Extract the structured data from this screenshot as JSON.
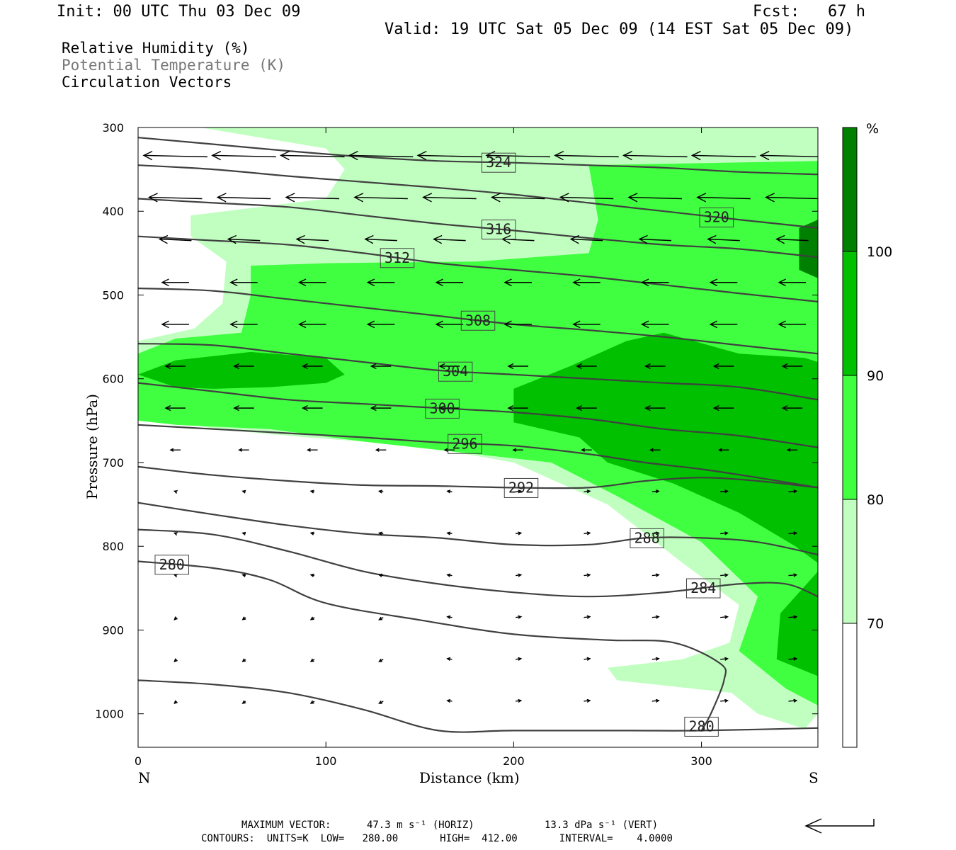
{
  "header": {
    "init": "Init: 00 UTC Thu 03 Dec 09",
    "fcst": "Fcst:   67 h",
    "valid": "Valid: 19 UTC Sat 05 Dec 09 (14 EST Sat 05 Dec 09)"
  },
  "legend": {
    "rh": "Relative Humidity (%)",
    "theta": "Potential Temperature (K)",
    "vectors": "Circulation Vectors"
  },
  "footer": {
    "max_vector_label": "MAXIMUM VECTOR:",
    "max_horiz": "47.3 m s⁻¹ (HORIZ)",
    "max_vert": "13.3 dPa s⁻¹ (VERT)",
    "contours": "CONTOURS:  UNITS=K  LOW=   280.00       HIGH=  412.00       INTERVAL=    4.0000"
  },
  "colors": {
    "band_70_80": "#c0ffc0",
    "band_80_90": "#40ff40",
    "band_90_100": "#00c000",
    "band_100": "#008000",
    "isentrope": "#404040",
    "vector": "#000000"
  },
  "chart_data": {
    "type": "heatmap",
    "title": "",
    "xlabel": "Distance (km)",
    "ylabel": "Pressure (hPa)",
    "xlim": [
      0,
      362
    ],
    "ylim": [
      1040,
      300
    ],
    "x_ticks": [
      "0",
      "100",
      "200",
      "300"
    ],
    "y_ticks": [
      "300",
      "400",
      "500",
      "600",
      "700",
      "800",
      "900",
      "1000"
    ],
    "x_end_labels": {
      "left": "N",
      "right": "S"
    },
    "colorbar": {
      "unit": "%",
      "levels": [
        "70",
        "80",
        "90",
        "100"
      ],
      "bands": [
        {
          "range": "<70",
          "color": "#ffffff"
        },
        {
          "range": "70-80",
          "color": "#c0ffc0"
        },
        {
          "range": "80-90",
          "color": "#40ff40"
        },
        {
          "range": "90-100",
          "color": "#00c000"
        },
        {
          "range": ">100",
          "color": "#008000"
        }
      ]
    },
    "rh_regions": [
      {
        "level": 70,
        "points": [
          [
            33,
            300
          ],
          [
            362,
            300
          ],
          [
            362,
            1000
          ],
          [
            355,
            1018
          ],
          [
            330,
            1000
          ],
          [
            316,
            975
          ],
          [
            255,
            960
          ],
          [
            250,
            945
          ],
          [
            290,
            935
          ],
          [
            315,
            915
          ],
          [
            320,
            870
          ],
          [
            290,
            820
          ],
          [
            250,
            750
          ],
          [
            200,
            700
          ],
          [
            150,
            680
          ],
          [
            90,
            670
          ],
          [
            40,
            660
          ],
          [
            0,
            640
          ],
          [
            0,
            555
          ],
          [
            30,
            540
          ],
          [
            45,
            510
          ],
          [
            47,
            460
          ],
          [
            28,
            430
          ],
          [
            28,
            405
          ],
          [
            100,
            385
          ],
          [
            110,
            350
          ],
          [
            100,
            325
          ]
        ]
      },
      {
        "level": 80,
        "points": [
          [
            240,
            345
          ],
          [
            362,
            340
          ],
          [
            362,
            990
          ],
          [
            345,
            970
          ],
          [
            320,
            925
          ],
          [
            330,
            860
          ],
          [
            300,
            795
          ],
          [
            255,
            740
          ],
          [
            220,
            700
          ],
          [
            180,
            690
          ],
          [
            120,
            675
          ],
          [
            70,
            660
          ],
          [
            20,
            655
          ],
          [
            0,
            650
          ],
          [
            0,
            570
          ],
          [
            20,
            552
          ],
          [
            55,
            545
          ],
          [
            60,
            500
          ],
          [
            60,
            465
          ],
          [
            100,
            462
          ],
          [
            180,
            460
          ],
          [
            240,
            450
          ],
          [
            245,
            410
          ]
        ]
      },
      {
        "level": 90,
        "points": [
          [
            200,
            612
          ],
          [
            230,
            585
          ],
          [
            260,
            555
          ],
          [
            280,
            545
          ],
          [
            320,
            570
          ],
          [
            355,
            575
          ],
          [
            362,
            580
          ],
          [
            362,
            955
          ],
          [
            340,
            935
          ],
          [
            342,
            880
          ],
          [
            362,
            830
          ],
          [
            362,
            820
          ],
          [
            350,
            800
          ],
          [
            320,
            760
          ],
          [
            285,
            725
          ],
          [
            250,
            700
          ],
          [
            235,
            670
          ],
          [
            200,
            652
          ]
        ]
      },
      {
        "level": 90,
        "points": [
          [
            0,
            595
          ],
          [
            20,
            578
          ],
          [
            60,
            568
          ],
          [
            100,
            575
          ],
          [
            110,
            595
          ],
          [
            100,
            605
          ],
          [
            70,
            610
          ],
          [
            40,
            612
          ],
          [
            20,
            610
          ]
        ]
      },
      {
        "level": 100,
        "points": [
          [
            362,
            410
          ],
          [
            352,
            420
          ],
          [
            352,
            470
          ],
          [
            362,
            480
          ]
        ]
      }
    ],
    "isentropes": [
      {
        "level": 280,
        "label": "280",
        "points": [
          [
            0,
            818
          ],
          [
            40,
            826
          ],
          [
            70,
            840
          ],
          [
            100,
            868
          ],
          [
            150,
            888
          ],
          [
            200,
            905
          ],
          [
            250,
            912
          ],
          [
            285,
            915
          ],
          [
            310,
            940
          ],
          [
            312,
            960
          ],
          [
            305,
            1000
          ],
          [
            300,
            1020
          ]
        ]
      },
      {
        "level": 280,
        "points": [
          [
            0,
            960
          ],
          [
            40,
            965
          ],
          [
            80,
            975
          ],
          [
            120,
            995
          ],
          [
            160,
            1020
          ],
          [
            200,
            1020
          ],
          [
            260,
            1020
          ],
          [
            300,
            1020
          ],
          [
            362,
            1017
          ]
        ]
      },
      {
        "level": 284,
        "label": "284",
        "points": [
          [
            0,
            780
          ],
          [
            40,
            786
          ],
          [
            80,
            806
          ],
          [
            120,
            830
          ],
          [
            160,
            845
          ],
          [
            200,
            855
          ],
          [
            240,
            860
          ],
          [
            280,
            855
          ],
          [
            320,
            845
          ],
          [
            345,
            845
          ],
          [
            362,
            860
          ]
        ]
      },
      {
        "level": 288,
        "label": "288",
        "points": [
          [
            0,
            748
          ],
          [
            40,
            762
          ],
          [
            80,
            775
          ],
          [
            120,
            785
          ],
          [
            160,
            790
          ],
          [
            200,
            798
          ],
          [
            240,
            798
          ],
          [
            270,
            790
          ],
          [
            300,
            790
          ],
          [
            330,
            795
          ],
          [
            362,
            810
          ]
        ]
      },
      {
        "level": 292,
        "label": "292",
        "points": [
          [
            0,
            705
          ],
          [
            40,
            715
          ],
          [
            80,
            722
          ],
          [
            120,
            727
          ],
          [
            160,
            728
          ],
          [
            200,
            730
          ],
          [
            240,
            730
          ],
          [
            270,
            722
          ],
          [
            300,
            718
          ],
          [
            330,
            722
          ],
          [
            362,
            730
          ]
        ]
      },
      {
        "level": 296,
        "label": "296",
        "points": [
          [
            0,
            655
          ],
          [
            40,
            660
          ],
          [
            80,
            665
          ],
          [
            120,
            670
          ],
          [
            160,
            676
          ],
          [
            200,
            680
          ],
          [
            240,
            690
          ],
          [
            270,
            700
          ],
          [
            300,
            708
          ],
          [
            330,
            718
          ],
          [
            362,
            730
          ]
        ]
      },
      {
        "level": 300,
        "label": "300",
        "points": [
          [
            0,
            605
          ],
          [
            40,
            615
          ],
          [
            80,
            625
          ],
          [
            120,
            630
          ],
          [
            160,
            635
          ],
          [
            200,
            640
          ],
          [
            240,
            648
          ],
          [
            280,
            660
          ],
          [
            320,
            668
          ],
          [
            362,
            682
          ]
        ]
      },
      {
        "level": 304,
        "label": "304",
        "points": [
          [
            0,
            558
          ],
          [
            40,
            560
          ],
          [
            80,
            570
          ],
          [
            120,
            580
          ],
          [
            160,
            590
          ],
          [
            200,
            595
          ],
          [
            240,
            600
          ],
          [
            280,
            605
          ],
          [
            320,
            610
          ],
          [
            362,
            625
          ]
        ]
      },
      {
        "level": 308,
        "label": "308",
        "points": [
          [
            0,
            492
          ],
          [
            40,
            495
          ],
          [
            80,
            505
          ],
          [
            120,
            515
          ],
          [
            160,
            525
          ],
          [
            200,
            535
          ],
          [
            240,
            542
          ],
          [
            280,
            550
          ],
          [
            320,
            560
          ],
          [
            362,
            570
          ]
        ]
      },
      {
        "level": 312,
        "label": "312",
        "points": [
          [
            0,
            430
          ],
          [
            40,
            435
          ],
          [
            80,
            440
          ],
          [
            120,
            450
          ],
          [
            160,
            462
          ],
          [
            200,
            470
          ],
          [
            240,
            478
          ],
          [
            280,
            488
          ],
          [
            320,
            498
          ],
          [
            362,
            508
          ]
        ]
      },
      {
        "level": 316,
        "label": "316",
        "points": [
          [
            0,
            385
          ],
          [
            40,
            390
          ],
          [
            80,
            395
          ],
          [
            120,
            405
          ],
          [
            160,
            415
          ],
          [
            200,
            423
          ],
          [
            240,
            432
          ],
          [
            280,
            440
          ],
          [
            320,
            445
          ],
          [
            362,
            455
          ]
        ]
      },
      {
        "level": 320,
        "label": "320",
        "points": [
          [
            0,
            345
          ],
          [
            40,
            350
          ],
          [
            80,
            358
          ],
          [
            120,
            365
          ],
          [
            160,
            372
          ],
          [
            200,
            380
          ],
          [
            240,
            390
          ],
          [
            280,
            400
          ],
          [
            320,
            410
          ],
          [
            362,
            420
          ]
        ]
      },
      {
        "level": 324,
        "label": "324",
        "points": [
          [
            0,
            312
          ],
          [
            40,
            320
          ],
          [
            80,
            328
          ],
          [
            120,
            335
          ],
          [
            160,
            340
          ],
          [
            200,
            342
          ],
          [
            240,
            345
          ],
          [
            280,
            348
          ],
          [
            320,
            353
          ],
          [
            362,
            356
          ]
        ]
      }
    ],
    "vectors_note": "circulation vectors (horizontal m/s, vertical dPa/s) drawn as arrows on a regular grid"
  }
}
